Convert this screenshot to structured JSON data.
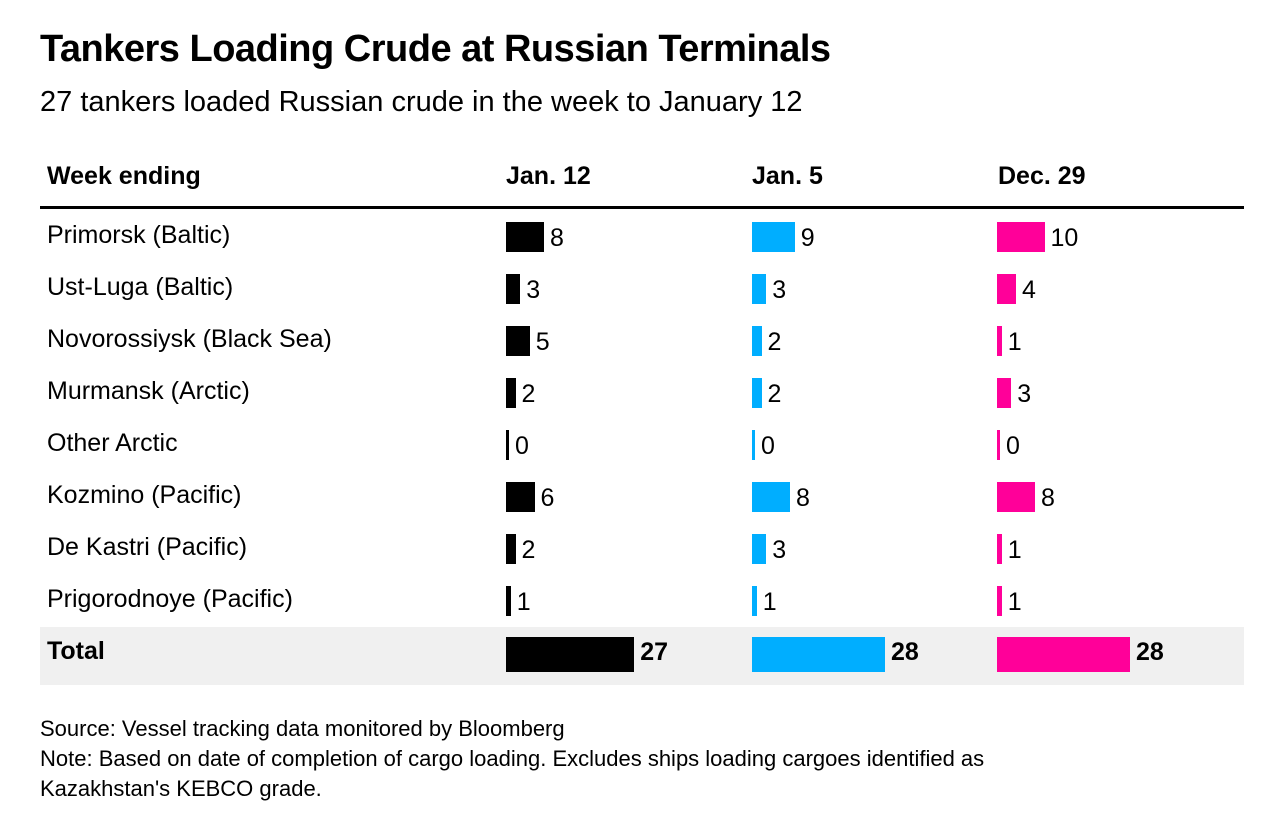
{
  "title": "Tankers Loading Crude at Russian Terminals",
  "subtitle": "27 tankers loaded Russian crude in the week to January 12",
  "source": "Source: Vessel tracking data monitored by Bloomberg",
  "note_line1": "Note: Based on date of completion of cargo loading. Excludes ships loading cargoes identified as",
  "note_line2": "Kazakhstan's KEBCO grade.",
  "chart_data": {
    "type": "table",
    "row_header": "Week ending",
    "columns": [
      {
        "label": "Jan. 12",
        "color": "#000000"
      },
      {
        "label": "Jan. 5",
        "color": "#00aeff"
      },
      {
        "label": "Dec. 29",
        "color": "#ff0099"
      }
    ],
    "rows": [
      {
        "label": "Primorsk (Baltic)",
        "values": [
          8,
          9,
          10
        ]
      },
      {
        "label": "Ust-Luga (Baltic)",
        "values": [
          3,
          3,
          4
        ]
      },
      {
        "label": "Novorossiysk (Black Sea)",
        "values": [
          5,
          2,
          1
        ]
      },
      {
        "label": "Murmansk (Arctic)",
        "values": [
          2,
          2,
          3
        ]
      },
      {
        "label": "Other Arctic",
        "values": [
          0,
          0,
          0
        ]
      },
      {
        "label": "Kozmino (Pacific)",
        "values": [
          6,
          8,
          8
        ]
      },
      {
        "label": "De Kastri (Pacific)",
        "values": [
          2,
          3,
          1
        ]
      },
      {
        "label": "Prigorodnoye (Pacific)",
        "values": [
          1,
          1,
          1
        ]
      }
    ],
    "total": {
      "label": "Total",
      "values": [
        27,
        28,
        28
      ]
    }
  }
}
